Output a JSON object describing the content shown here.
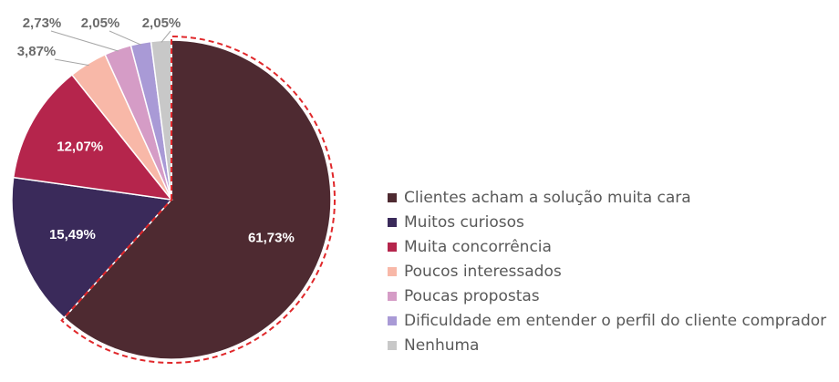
{
  "chart_data": {
    "type": "pie",
    "title": "",
    "start_angle_deg": 0,
    "direction": "clockwise",
    "slices": [
      {
        "label": "Clientes acham a solução muita cara",
        "value": 61.73,
        "display": "61,73%",
        "color": "#4e2a31",
        "label_color": "#ffffff",
        "label_position": "inside",
        "highlighted": true
      },
      {
        "label": "Muitos curiosos",
        "value": 15.49,
        "display": "15,49%",
        "color": "#3a2a5a",
        "label_color": "#ffffff",
        "label_position": "inside",
        "highlighted": false
      },
      {
        "label": "Muita concorrência",
        "value": 12.07,
        "display": "12,07%",
        "color": "#b5254c",
        "label_color": "#ffffff",
        "label_position": "inside",
        "highlighted": false
      },
      {
        "label": "Poucos interessados",
        "value": 3.87,
        "display": "3,87%",
        "color": "#f8b8a8",
        "label_color": "#6b6b6b",
        "label_position": "outside",
        "highlighted": false
      },
      {
        "label": "Poucas propostas",
        "value": 2.73,
        "display": "2,73%",
        "color": "#d59cc6",
        "label_color": "#6b6b6b",
        "label_position": "outside",
        "highlighted": false
      },
      {
        "label": "Dificuldade em entender o perfil do cliente comprador",
        "value": 2.05,
        "display": "2,05%",
        "color": "#a99ad6",
        "label_color": "#6b6b6b",
        "label_position": "outside",
        "highlighted": false
      },
      {
        "label": "Nenhuma",
        "value": 2.05,
        "display": "2,05%",
        "color": "#c8c8c8",
        "label_color": "#6b6b6b",
        "label_position": "outside",
        "highlighted": false
      }
    ],
    "highlight_color": "#e0282b",
    "legend_position": "right"
  }
}
